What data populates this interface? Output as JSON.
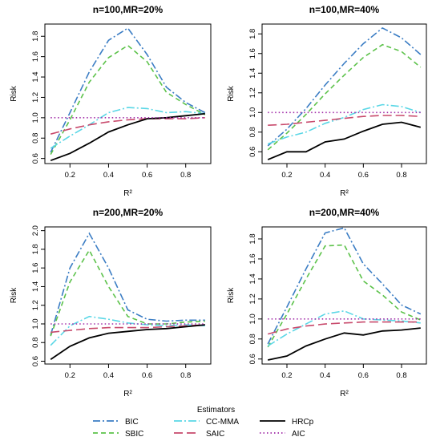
{
  "chart_data": [
    {
      "type": "line",
      "title": "n=100,MR=20%",
      "xlabel": "R²",
      "ylabel": "Risk",
      "x": [
        0.1,
        0.2,
        0.3,
        0.4,
        0.5,
        0.6,
        0.7,
        0.8,
        0.9
      ],
      "xticks": [
        "0.2",
        "0.4",
        "0.6",
        "0.8"
      ],
      "xtick_values": [
        0.2,
        0.4,
        0.6,
        0.8
      ],
      "yticks": [
        "0.6",
        "0.8",
        "1.0",
        "1.2",
        "1.4",
        "1.6",
        "1.8"
      ],
      "ytick_values": [
        0.6,
        0.8,
        1.0,
        1.2,
        1.4,
        1.6,
        1.8
      ],
      "xlim": [
        0.07,
        0.93
      ],
      "ylim": [
        0.55,
        1.92
      ],
      "series": [
        {
          "name": "BIC",
          "values": [
            0.66,
            1.05,
            1.45,
            1.76,
            1.88,
            1.62,
            1.3,
            1.15,
            1.05
          ]
        },
        {
          "name": "SBIC",
          "values": [
            0.64,
            0.98,
            1.35,
            1.59,
            1.71,
            1.55,
            1.25,
            1.13,
            1.03
          ]
        },
        {
          "name": "CC-MMA",
          "values": [
            0.7,
            0.82,
            0.93,
            1.05,
            1.1,
            1.09,
            1.05,
            1.06,
            1.04
          ]
        },
        {
          "name": "SAIC",
          "values": [
            0.84,
            0.89,
            0.93,
            0.96,
            0.98,
            0.99,
            0.99,
            0.99,
            1.0
          ]
        },
        {
          "name": "HRCp",
          "values": [
            0.58,
            0.65,
            0.75,
            0.86,
            0.93,
            0.99,
            1.0,
            1.02,
            1.04
          ]
        },
        {
          "name": "AIC",
          "values": [
            1.0,
            1.0,
            1.0,
            1.0,
            1.0,
            1.0,
            1.0,
            1.0,
            1.0
          ]
        }
      ]
    },
    {
      "type": "line",
      "title": "n=100,MR=40%",
      "xlabel": "R²",
      "ylabel": "Risk",
      "x": [
        0.1,
        0.2,
        0.3,
        0.4,
        0.5,
        0.6,
        0.7,
        0.8,
        0.9
      ],
      "xticks": [
        "0.2",
        "0.4",
        "0.6",
        "0.8"
      ],
      "xtick_values": [
        0.2,
        0.4,
        0.6,
        0.8
      ],
      "yticks": [
        "0.6",
        "0.8",
        "1.0",
        "1.2",
        "1.4",
        "1.6",
        "1.8"
      ],
      "ytick_values": [
        0.6,
        0.8,
        1.0,
        1.2,
        1.4,
        1.6,
        1.8
      ],
      "xlim": [
        0.07,
        0.93
      ],
      "ylim": [
        0.48,
        1.9
      ],
      "series": [
        {
          "name": "BIC",
          "values": [
            0.66,
            0.83,
            1.04,
            1.28,
            1.5,
            1.7,
            1.86,
            1.76,
            1.59
          ]
        },
        {
          "name": "SBIC",
          "values": [
            0.62,
            0.79,
            0.98,
            1.19,
            1.38,
            1.56,
            1.69,
            1.62,
            1.46
          ]
        },
        {
          "name": "CC-MMA",
          "values": [
            0.68,
            0.75,
            0.8,
            0.89,
            0.95,
            1.03,
            1.08,
            1.06,
            1.0
          ]
        },
        {
          "name": "SAIC",
          "values": [
            0.87,
            0.88,
            0.9,
            0.92,
            0.94,
            0.96,
            0.97,
            0.97,
            0.96
          ]
        },
        {
          "name": "HRCp",
          "values": [
            0.52,
            0.6,
            0.6,
            0.7,
            0.73,
            0.81,
            0.88,
            0.9,
            0.85
          ]
        },
        {
          "name": "AIC",
          "values": [
            1.0,
            1.0,
            1.0,
            1.0,
            1.0,
            1.0,
            1.0,
            1.0,
            1.0
          ]
        }
      ]
    },
    {
      "type": "line",
      "title": "n=200,MR=20%",
      "xlabel": "R²",
      "ylabel": "Risk",
      "x": [
        0.1,
        0.2,
        0.3,
        0.4,
        0.5,
        0.6,
        0.7,
        0.8,
        0.9
      ],
      "xticks": [
        "0.2",
        "0.4",
        "0.6",
        "0.8"
      ],
      "xtick_values": [
        0.2,
        0.4,
        0.6,
        0.8
      ],
      "yticks": [
        "0.6",
        "0.8",
        "1.0",
        "1.2",
        "1.4",
        "1.6",
        "1.8",
        "2.0"
      ],
      "ytick_values": [
        0.6,
        0.8,
        1.0,
        1.2,
        1.4,
        1.6,
        1.8,
        2.0
      ],
      "xlim": [
        0.07,
        0.93
      ],
      "ylim": [
        0.57,
        2.04
      ],
      "series": [
        {
          "name": "BIC",
          "values": [
            0.88,
            1.6,
            1.97,
            1.6,
            1.15,
            1.05,
            1.03,
            1.04,
            1.04
          ]
        },
        {
          "name": "SBIC",
          "values": [
            0.87,
            1.45,
            1.79,
            1.4,
            1.08,
            1.0,
            1.0,
            1.02,
            1.03
          ]
        },
        {
          "name": "CC-MMA",
          "values": [
            0.77,
            0.98,
            1.08,
            1.05,
            1.01,
            0.99,
            0.98,
            0.99,
            0.98
          ]
        },
        {
          "name": "SAIC",
          "values": [
            0.91,
            0.93,
            0.95,
            0.96,
            0.96,
            0.96,
            0.97,
            0.98,
            0.99
          ]
        },
        {
          "name": "HRCp",
          "values": [
            0.62,
            0.76,
            0.85,
            0.9,
            0.92,
            0.94,
            0.95,
            0.97,
            0.99
          ]
        },
        {
          "name": "AIC",
          "values": [
            1.0,
            1.0,
            1.0,
            1.0,
            1.0,
            1.0,
            1.0,
            1.0,
            1.0
          ]
        }
      ]
    },
    {
      "type": "line",
      "title": "n=200,MR=40%",
      "xlabel": "R²",
      "ylabel": "Risk",
      "x": [
        0.1,
        0.2,
        0.3,
        0.4,
        0.5,
        0.6,
        0.7,
        0.8,
        0.9
      ],
      "xticks": [
        "0.2",
        "0.4",
        "0.6",
        "0.8"
      ],
      "xtick_values": [
        0.2,
        0.4,
        0.6,
        0.8
      ],
      "yticks": [
        "0.6",
        "0.8",
        "1.0",
        "1.2",
        "1.4",
        "1.6",
        "1.8"
      ],
      "ytick_values": [
        0.6,
        0.8,
        1.0,
        1.2,
        1.4,
        1.6,
        1.8
      ],
      "xlim": [
        0.07,
        0.93
      ],
      "ylim": [
        0.55,
        1.92
      ],
      "series": [
        {
          "name": "BIC",
          "values": [
            0.75,
            1.12,
            1.5,
            1.86,
            1.91,
            1.55,
            1.35,
            1.14,
            1.05
          ]
        },
        {
          "name": "SBIC",
          "values": [
            0.72,
            1.05,
            1.4,
            1.73,
            1.74,
            1.38,
            1.24,
            1.07,
            0.99
          ]
        },
        {
          "name": "CC-MMA",
          "values": [
            0.73,
            0.85,
            0.95,
            1.05,
            1.08,
            1.0,
            0.99,
            0.98,
            0.96
          ]
        },
        {
          "name": "SAIC",
          "values": [
            0.85,
            0.9,
            0.93,
            0.95,
            0.96,
            0.97,
            0.97,
            0.97,
            0.97
          ]
        },
        {
          "name": "HRCp",
          "values": [
            0.59,
            0.63,
            0.73,
            0.8,
            0.86,
            0.84,
            0.88,
            0.89,
            0.91
          ]
        },
        {
          "name": "AIC",
          "values": [
            1.0,
            1.0,
            1.0,
            1.0,
            1.0,
            1.0,
            1.0,
            1.0,
            1.0
          ]
        }
      ]
    }
  ],
  "legend": {
    "title": "Estimators",
    "items": [
      "BIC",
      "SBIC",
      "CC-MMA",
      "SAIC",
      "HRCp",
      "AIC"
    ]
  },
  "series_styles": {
    "BIC": {
      "color": "#3b7dc4",
      "dash": "9 3 2 3"
    },
    "SBIC": {
      "color": "#5cc24a",
      "dash": "6 4"
    },
    "CC-MMA": {
      "color": "#5ad7e6",
      "dash": "10 3 2 3"
    },
    "SAIC": {
      "color": "#c84a6c",
      "dash": "11 5"
    },
    "HRCp": {
      "color": "#000000",
      "dash": ""
    },
    "AIC": {
      "color": "#a12ca8",
      "dash": "1.5 3"
    }
  }
}
